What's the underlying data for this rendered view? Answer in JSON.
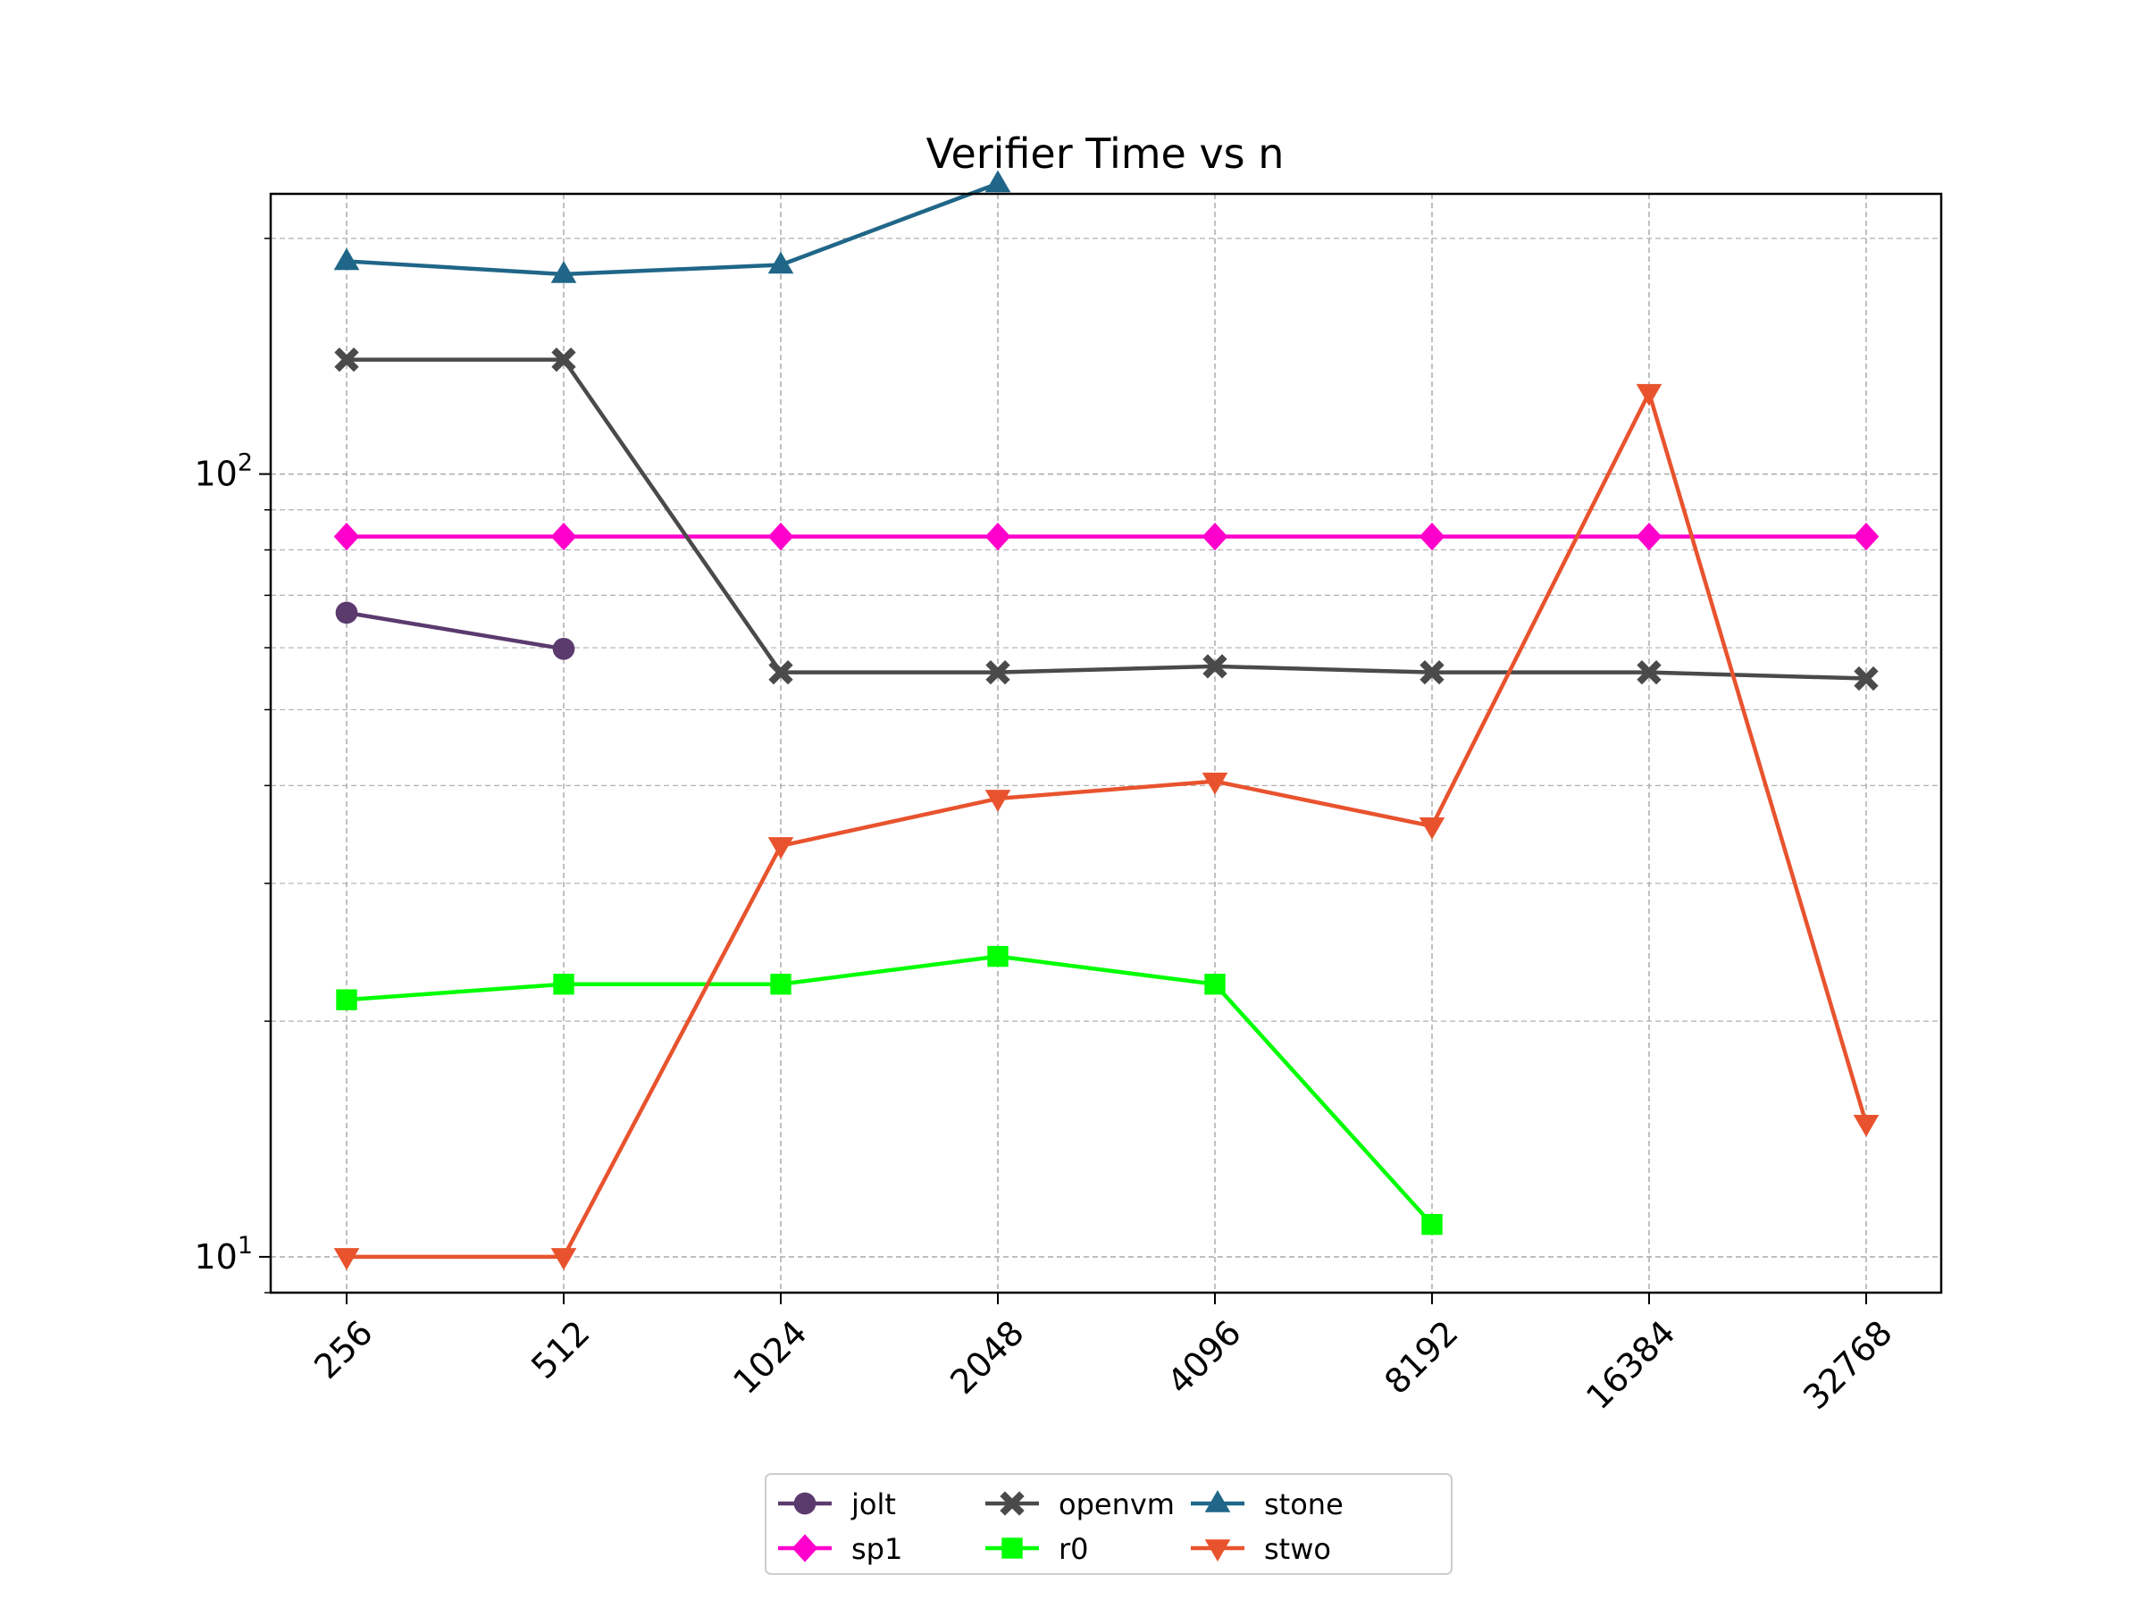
{
  "chart_data": {
    "type": "line",
    "title": "Verifier Time vs n",
    "xlabel": "",
    "ylabel": "",
    "yscale": "log",
    "ylim": [
      9.0,
      228.0
    ],
    "grid": true,
    "legend_position": "bottom-center",
    "categories": [
      "256",
      "512",
      "1024",
      "2048",
      "4096",
      "8192",
      "16384",
      "32768"
    ],
    "y_ticks": [
      {
        "value": 10,
        "base": "10",
        "exp": "1"
      },
      {
        "value": 100,
        "base": "10",
        "exp": "2"
      }
    ],
    "series": [
      {
        "name": "jolt",
        "color": "#5b3a6e",
        "marker": "circle",
        "values": [
          66.5,
          59.8,
          null,
          null,
          null,
          null,
          null,
          null
        ]
      },
      {
        "name": "sp1",
        "color": "#ff00cc",
        "marker": "diamond",
        "values": [
          83.2,
          83.2,
          83.2,
          83.2,
          83.2,
          83.2,
          83.2,
          83.2
        ]
      },
      {
        "name": "openvm",
        "color": "#4a4a4a",
        "marker": "x",
        "values": [
          140.0,
          140.0,
          55.8,
          55.8,
          56.8,
          55.8,
          55.8,
          54.8
        ]
      },
      {
        "name": "r0",
        "color": "#00ff00",
        "marker": "square",
        "values": [
          21.3,
          22.3,
          22.3,
          24.2,
          22.3,
          11.0,
          null,
          null
        ]
      },
      {
        "name": "stone",
        "color": "#1f6688",
        "marker": "triangle-up",
        "values": [
          187.0,
          180.0,
          185.0,
          235.0,
          null,
          null,
          null,
          null
        ]
      },
      {
        "name": "stwo",
        "color": "#e8532e",
        "marker": "triangle-down",
        "values": [
          10.0,
          10.0,
          33.5,
          38.5,
          40.5,
          35.5,
          127.0,
          14.8
        ]
      }
    ]
  }
}
